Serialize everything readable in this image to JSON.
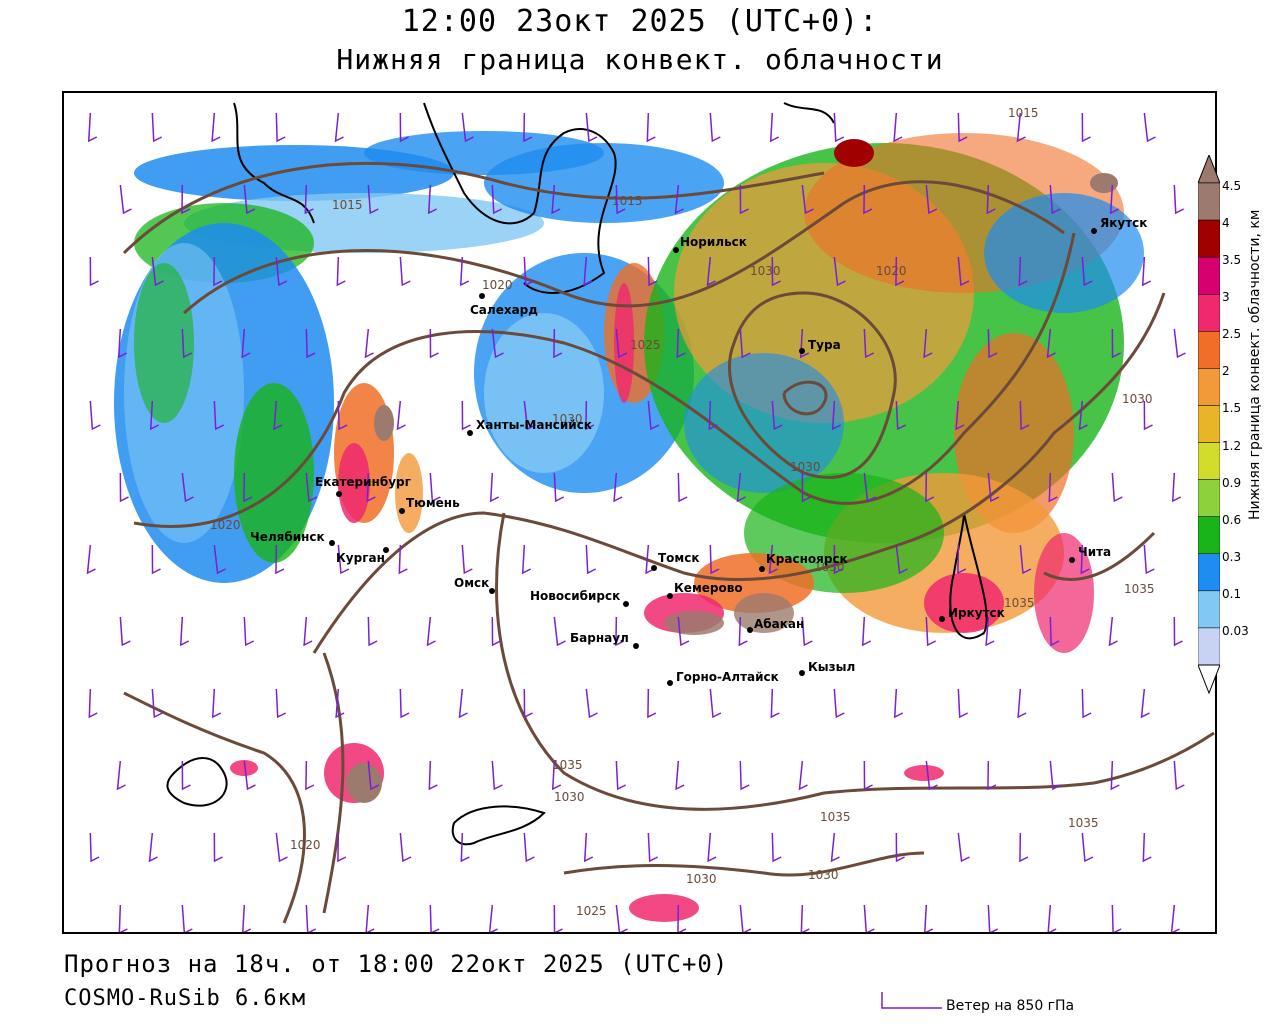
{
  "header": {
    "title": "12:00 23окт 2025 (UTC+0):",
    "subtitle": "Нижняя граница конвект. облачности"
  },
  "footer": {
    "forecast": "Прогноз на 18ч. от 18:00 22окт 2025 (UTC+0)",
    "model": "COSMO-RuSib 6.6км",
    "wind_legend": "Ветер на 850 гПа"
  },
  "legend": {
    "axis_title": "Нижняя граница конвект. облачности, км",
    "levels": [
      {
        "label": "4.5",
        "color": "#9c7a6e"
      },
      {
        "label": "4",
        "color": "#a00000"
      },
      {
        "label": "3.5",
        "color": "#d6006e"
      },
      {
        "label": "3",
        "color": "#f0286e"
      },
      {
        "label": "2.5",
        "color": "#f06e28"
      },
      {
        "label": "2",
        "color": "#f29a3a"
      },
      {
        "label": "1.5",
        "color": "#e8b428"
      },
      {
        "label": "1.2",
        "color": "#d2dc2a"
      },
      {
        "label": "0.9",
        "color": "#8cd23c"
      },
      {
        "label": "0.6",
        "color": "#19b419"
      },
      {
        "label": "0.3",
        "color": "#1e8cf0"
      },
      {
        "label": "0.1",
        "color": "#82c8f5"
      },
      {
        "label": "0.03",
        "color": "#c8d2f5"
      }
    ]
  },
  "map": {
    "cities": [
      {
        "name": "Норильск"
      },
      {
        "name": "Якутск"
      },
      {
        "name": "Салехард"
      },
      {
        "name": "Тура"
      },
      {
        "name": "Ханты-Мансийск"
      },
      {
        "name": "Екатеринбург"
      },
      {
        "name": "Тюмень"
      },
      {
        "name": "Челябинск"
      },
      {
        "name": "Курган"
      },
      {
        "name": "Омск"
      },
      {
        "name": "Новосибирск"
      },
      {
        "name": "Томск"
      },
      {
        "name": "Кемерово"
      },
      {
        "name": "Красноярск"
      },
      {
        "name": "Барнаул"
      },
      {
        "name": "Абакан"
      },
      {
        "name": "Горно-Алтайск"
      },
      {
        "name": "Кызыл"
      },
      {
        "name": "Иркутск"
      },
      {
        "name": "Чита"
      }
    ],
    "isobar_labels": [
      "1015",
      "1015",
      "1020",
      "1020",
      "1025",
      "1030",
      "1030",
      "1030",
      "1015",
      "1035",
      "1035",
      "1035",
      "1030",
      "1035",
      "1035",
      "1030",
      "1030",
      "1030",
      "1025",
      "1020",
      "1020",
      "1030"
    ]
  }
}
